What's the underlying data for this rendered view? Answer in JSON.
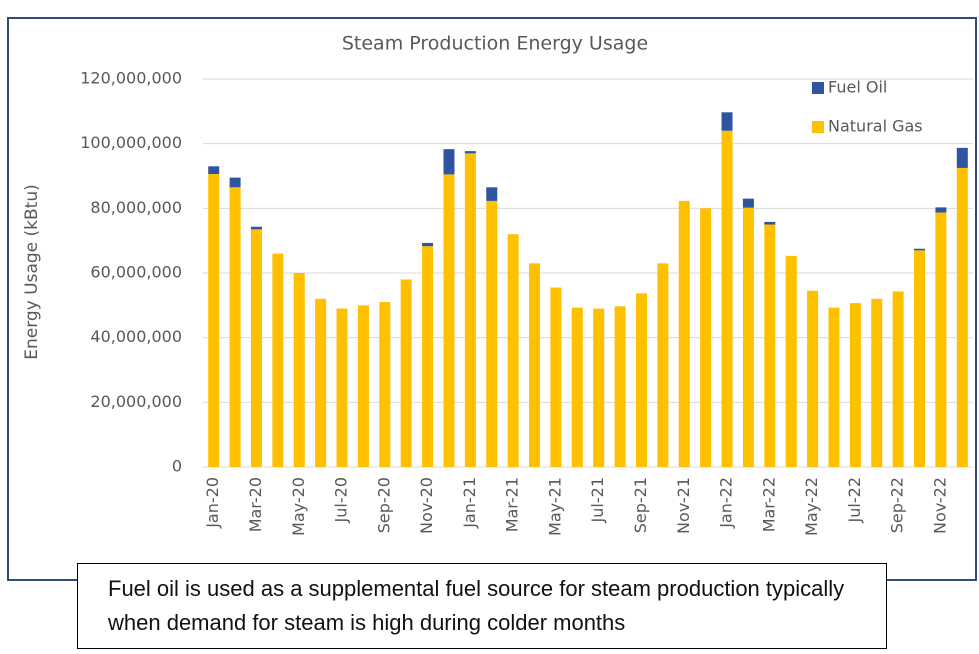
{
  "chart_data": {
    "type": "stacked_bar",
    "title": "Steam Production Energy Usage",
    "y_label": "Energy Usage (kBtu)",
    "categories": [
      "Jan-20",
      null,
      "Mar-20",
      null,
      "May-20",
      null,
      "Jul-20",
      null,
      "Sep-20",
      null,
      "Nov-20",
      null,
      "Jan-21",
      null,
      "Mar-21",
      null,
      "May-21",
      null,
      "Jul-21",
      null,
      "Sep-21",
      null,
      "Nov-21",
      null,
      "Jan-22",
      null,
      "Mar-22",
      null,
      "May-22",
      null,
      "Jul-22",
      null,
      "Sep-22",
      null,
      "Nov-22",
      null
    ],
    "series": [
      {
        "name": "Natural Gas",
        "color": "#ffc000",
        "values": [
          90600000,
          86500000,
          73500000,
          66000000,
          60000000,
          52000000,
          49000000,
          50000000,
          51000000,
          58000000,
          68300000,
          90500000,
          97000000,
          82300000,
          72000000,
          63000000,
          55500000,
          49300000,
          49000000,
          49700000,
          53700000,
          63000000,
          82300000,
          80000000,
          104000000,
          80200000,
          75000000,
          65300000,
          54500000,
          49300000,
          50700000,
          52000000,
          54300000,
          67000000,
          78700000,
          92500000
        ]
      },
      {
        "name": "Fuel Oil",
        "color": "#2f55a0",
        "values": [
          2400000,
          3000000,
          800000,
          0,
          0,
          0,
          0,
          0,
          0,
          0,
          1000000,
          7800000,
          700000,
          4200000,
          0,
          0,
          0,
          0,
          0,
          0,
          0,
          0,
          0,
          0,
          5700000,
          2800000,
          800000,
          0,
          0,
          0,
          0,
          0,
          0,
          500000,
          1600000,
          6200000
        ]
      }
    ],
    "ylim": [
      0,
      120000000
    ],
    "yticks": [
      0,
      {
        "value": 20000000,
        "label": "20,000,000"
      },
      {
        "value": 40000000,
        "label": "40,000,000"
      },
      {
        "value": 60000000,
        "label": "60,000,000"
      },
      {
        "value": 80000000,
        "label": "80,000,000"
      },
      {
        "value": 100000000,
        "label": "100,000,000"
      },
      {
        "value": 120000000,
        "label": "120,000,000"
      }
    ],
    "grid": true,
    "legend": "top-right",
    "annotation": "Fuel oil is used as a supplemental fuel source for steam production typically when demand for steam is high during colder months"
  }
}
